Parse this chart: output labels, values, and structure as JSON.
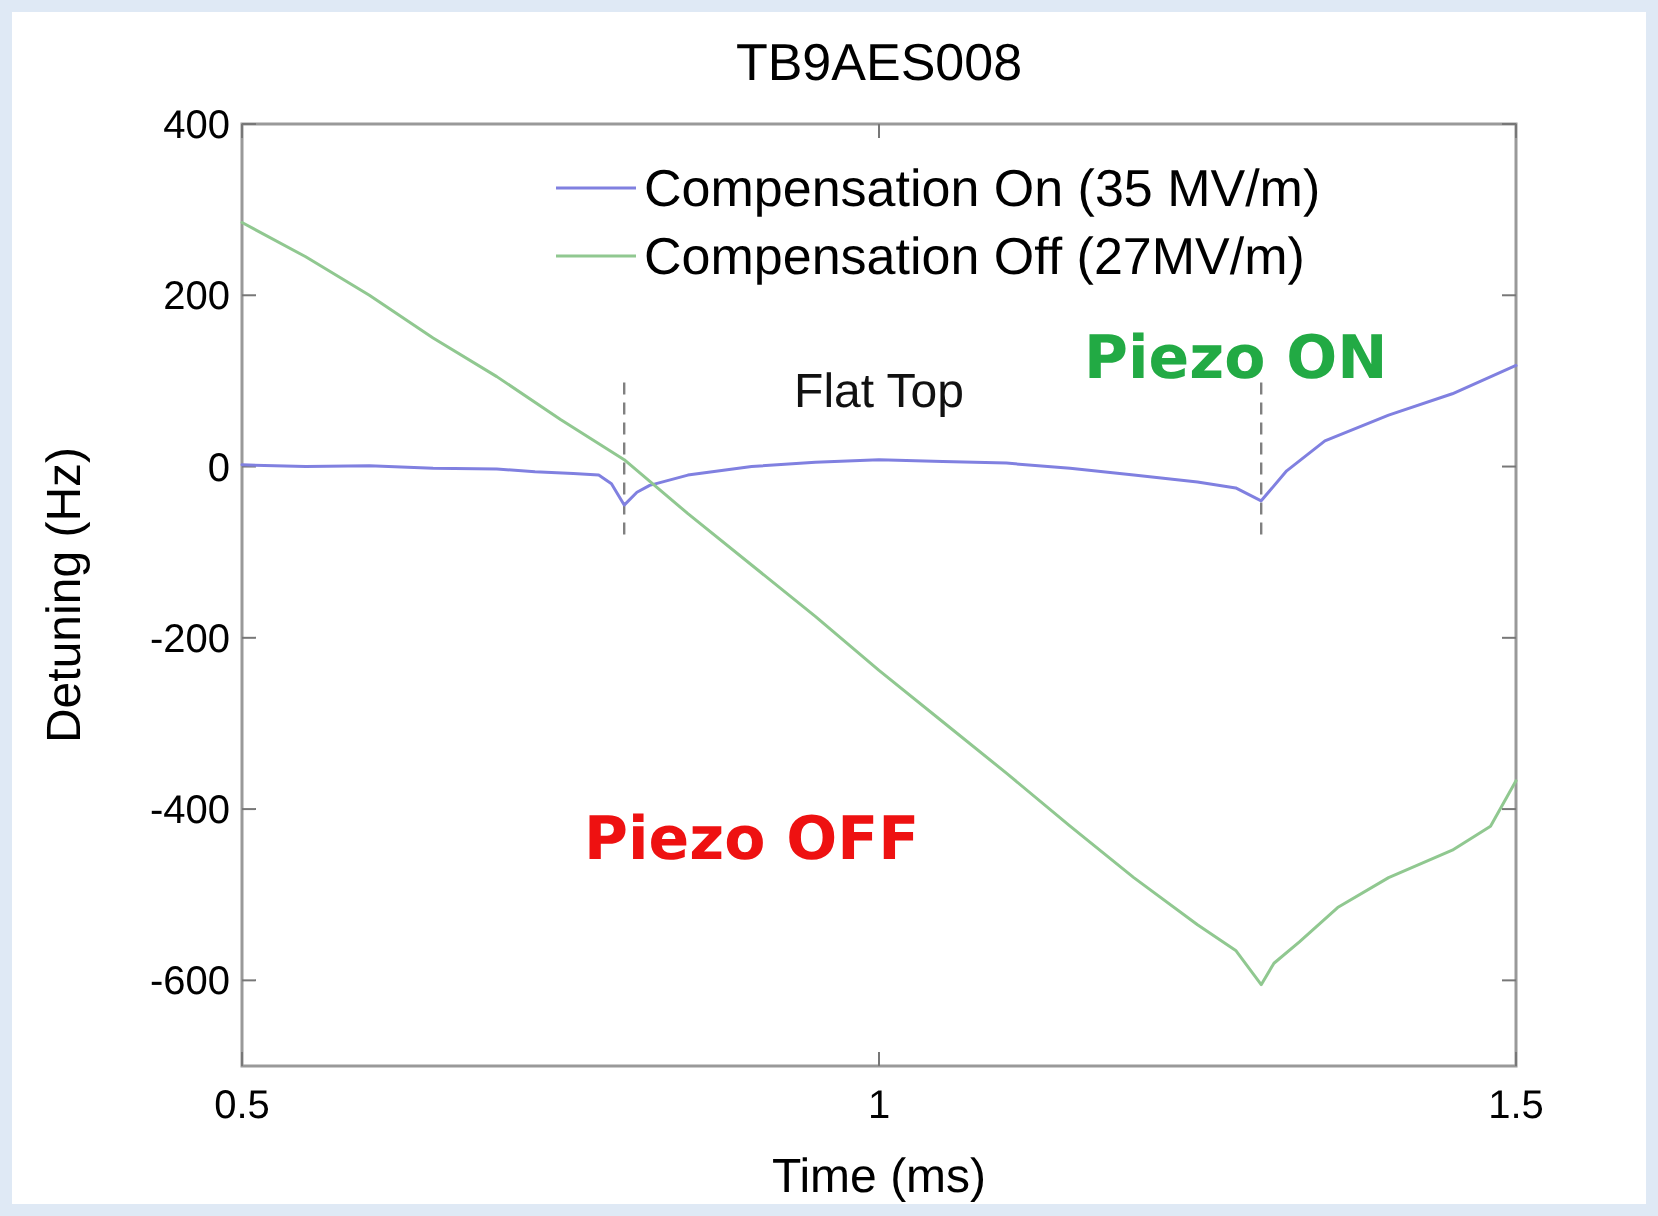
{
  "chart_data": {
    "type": "line",
    "title": "TB9AES008",
    "xlabel": "Time (ms)",
    "ylabel": "Detuning (Hz)",
    "xlim": [
      0.5,
      1.5
    ],
    "xticks": [
      0.5,
      1,
      1.5
    ],
    "ylim": [
      -700,
      400
    ],
    "yticks": [
      -600,
      -400,
      -200,
      0,
      200,
      400
    ],
    "grid": false,
    "legend": "top right",
    "line_style": "solid",
    "series": [
      {
        "name": "Compensation On (35 MV/m)",
        "color": "#8080e0",
        "x": [
          0.5,
          0.55,
          0.6,
          0.65,
          0.7,
          0.73,
          0.76,
          0.78,
          0.79,
          0.8,
          0.81,
          0.82,
          0.85,
          0.9,
          0.95,
          1.0,
          1.05,
          1.1,
          1.15,
          1.2,
          1.25,
          1.28,
          1.3,
          1.32,
          1.35,
          1.4,
          1.45,
          1.5
        ],
        "values": [
          2,
          0,
          1,
          -2,
          -3,
          -6,
          -8,
          -10,
          -20,
          -45,
          -30,
          -22,
          -10,
          0,
          5,
          8,
          6,
          4,
          -2,
          -10,
          -18,
          -25,
          -40,
          -5,
          30,
          60,
          85,
          118
        ]
      },
      {
        "name": "Compensation Off (27MV/m)",
        "color": "#90c890",
        "x": [
          0.5,
          0.55,
          0.6,
          0.65,
          0.7,
          0.75,
          0.8,
          0.85,
          0.9,
          0.95,
          1.0,
          1.05,
          1.1,
          1.15,
          1.2,
          1.25,
          1.28,
          1.3,
          1.31,
          1.33,
          1.36,
          1.4,
          1.45,
          1.48,
          1.5
        ],
        "values": [
          285,
          245,
          200,
          150,
          105,
          55,
          8,
          -55,
          -115,
          -175,
          -238,
          -298,
          -358,
          -420,
          -480,
          -535,
          -565,
          -605,
          -580,
          -555,
          -515,
          -480,
          -448,
          -420,
          -367
        ]
      }
    ],
    "ref_lines": [
      {
        "axis": "x",
        "value": 0.8,
        "line_style": "dashed",
        "color": "#808080"
      },
      {
        "axis": "x",
        "value": 1.3,
        "line_style": "dashed",
        "color": "#808080"
      }
    ],
    "annotations": [
      "Flat Top",
      "Piezo ON",
      "Piezo OFF"
    ]
  }
}
